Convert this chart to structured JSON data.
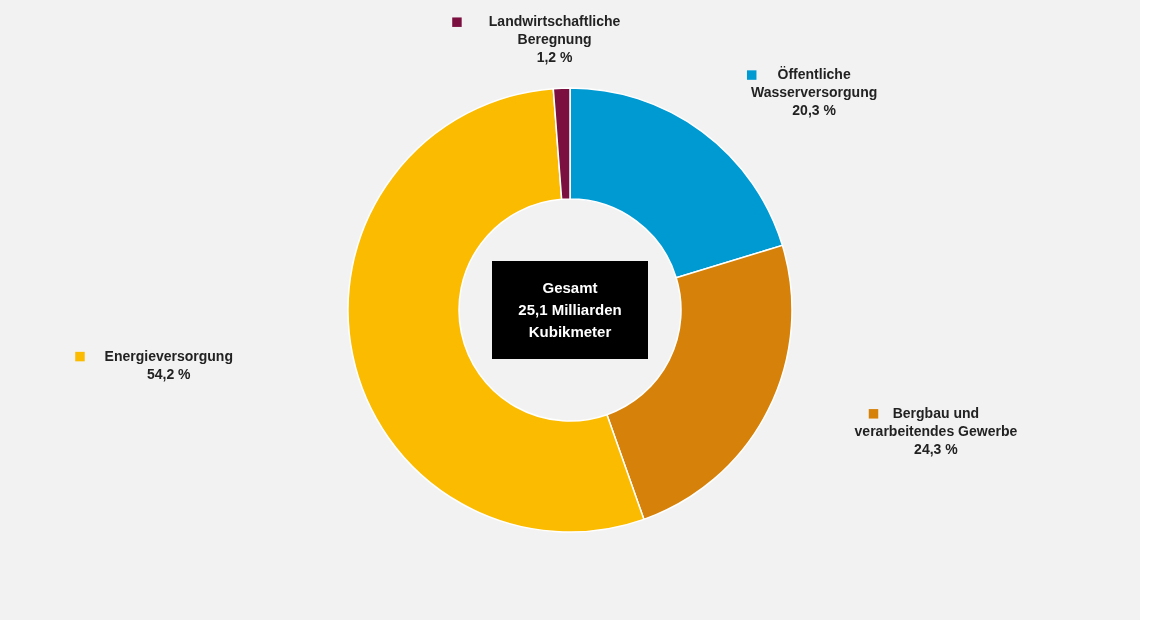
{
  "chart_data": {
    "type": "donut",
    "categories": [
      "Öffentliche\nWasserversorgung",
      "Bergbau und\nverarbeitendes Gewerbe",
      "Energieversorgung",
      "Landwirtschaftliche\nBeregnung"
    ],
    "values": [
      20.3,
      24.3,
      54.2,
      1.2
    ],
    "colors": [
      "#009ad3",
      "#d6820a",
      "#fbbb00",
      "#7b1040"
    ],
    "value_labels": [
      "20,3 %",
      "24,3 %",
      "54,2 %",
      "1,2 %"
    ],
    "annotations": [
      "Gesamt\n25,1 Milliarden\nKubikmeter"
    ],
    "legend": true
  }
}
